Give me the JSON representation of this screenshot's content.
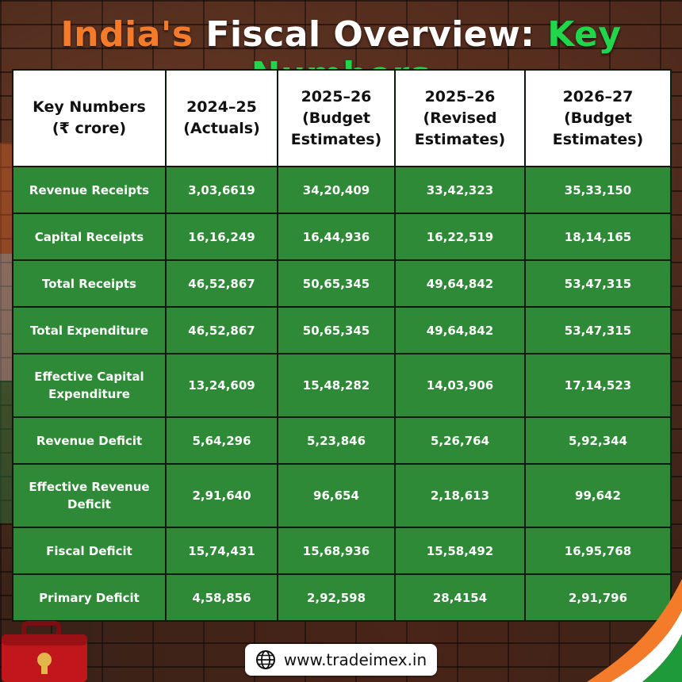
{
  "title": {
    "part1": "India's",
    "part2": "Fiscal Overview:",
    "part3": "Key Numbers"
  },
  "table": {
    "headers": [
      [
        "Key Numbers",
        "(₹ crore)"
      ],
      [
        "2024–25",
        "(Actuals)"
      ],
      [
        "2025–26",
        "(Budget",
        "Estimates)"
      ],
      [
        "2025–26",
        "(Revised",
        "Estimates)"
      ],
      [
        "2026–27",
        "(Budget",
        "Estimates)"
      ]
    ],
    "rows": [
      {
        "label": [
          "Revenue Receipts"
        ],
        "values": [
          "3,03,6619",
          "34,20,409",
          "33,42,323",
          "35,33,150"
        ]
      },
      {
        "label": [
          "Capital Receipts"
        ],
        "values": [
          "16,16,249",
          "16,44,936",
          "16,22,519",
          "18,14,165"
        ]
      },
      {
        "label": [
          "Total Receipts"
        ],
        "values": [
          "46,52,867",
          "50,65,345",
          "49,64,842",
          "53,47,315"
        ]
      },
      {
        "label": [
          "Total Expenditure"
        ],
        "values": [
          "46,52,867",
          "50,65,345",
          "49,64,842",
          "53,47,315"
        ]
      },
      {
        "label": [
          "Effective Capital",
          "Expenditure"
        ],
        "values": [
          "13,24,609",
          "15,48,282",
          "14,03,906",
          "17,14,523"
        ]
      },
      {
        "label": [
          "Revenue Deficit"
        ],
        "values": [
          "5,64,296",
          "5,23,846",
          "5,26,764",
          "5,92,344"
        ]
      },
      {
        "label": [
          "Effective Revenue",
          "Deficit"
        ],
        "values": [
          "2,91,640",
          "96,654",
          "2,18,613",
          "99,642"
        ]
      },
      {
        "label": [
          "Fiscal Deficit"
        ],
        "values": [
          "15,74,431",
          "15,68,936",
          "15,58,492",
          "16,95,768"
        ]
      },
      {
        "label": [
          "Primary Deficit"
        ],
        "values": [
          "4,58,856",
          "2,92,598",
          "28,4154",
          "2,91,796"
        ]
      }
    ]
  },
  "footer": {
    "website": "www.tradeimex.in",
    "icon": "globe-icon"
  },
  "colors": {
    "title_orange": "#f47b2a",
    "title_green": "#20d64a",
    "cell_green": "#2f8a37",
    "header_white": "#ffffff"
  }
}
